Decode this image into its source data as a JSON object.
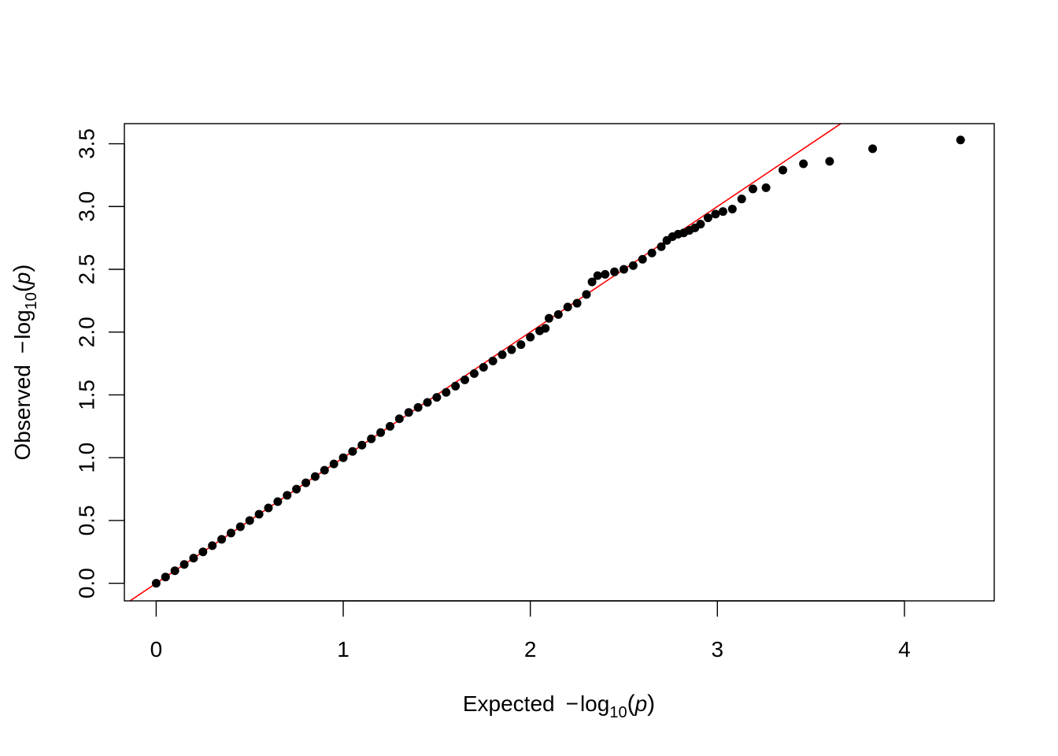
{
  "chart_data": {
    "type": "scatter",
    "title": "",
    "xlabel": {
      "prefix": "Expected",
      "minus": "−",
      "log": "log",
      "sub": "10",
      "arg": "p"
    },
    "ylabel": {
      "prefix": "Observed",
      "minus": "−",
      "log": "log",
      "sub": "10",
      "arg": "p"
    },
    "xlim": [
      -0.17,
      4.48
    ],
    "ylim": [
      -0.14,
      3.66
    ],
    "xticks": [
      0,
      1,
      2,
      3,
      4
    ],
    "xtick_labels": [
      "0",
      "1",
      "2",
      "3",
      "4"
    ],
    "yticks": [
      0.0,
      0.5,
      1.0,
      1.5,
      2.0,
      2.5,
      3.0,
      3.5
    ],
    "ytick_labels": [
      "0.0",
      "0.5",
      "1.0",
      "1.5",
      "2.0",
      "2.5",
      "3.0",
      "3.5"
    ],
    "reference_line": {
      "slope": 1,
      "intercept": 0,
      "color": "#ff0000"
    },
    "point_color": "#000000",
    "grid": false,
    "legend": "none",
    "series": [
      {
        "x": [
          0.0,
          0.05,
          0.1,
          0.15,
          0.2,
          0.25,
          0.3,
          0.35,
          0.4,
          0.45,
          0.5,
          0.55,
          0.6,
          0.65,
          0.7,
          0.75,
          0.8,
          0.85,
          0.9,
          0.95,
          1.0,
          1.05,
          1.1,
          1.15,
          1.2,
          1.25,
          1.3,
          1.35,
          1.4,
          1.45,
          1.5,
          1.55,
          1.6,
          1.65,
          1.7,
          1.75,
          1.8,
          1.85,
          1.9,
          1.95,
          2.0,
          2.05,
          2.08,
          2.1,
          2.15,
          2.2,
          2.25,
          2.3,
          2.33,
          2.36,
          2.4,
          2.45,
          2.5,
          2.55,
          2.6,
          2.65,
          2.7,
          2.73,
          2.76,
          2.79,
          2.82,
          2.85,
          2.88,
          2.91,
          2.95,
          2.99,
          3.03,
          3.08,
          3.13,
          3.19,
          3.26,
          3.35,
          3.46,
          3.6,
          3.83,
          4.3
        ],
        "y": [
          0.0,
          0.05,
          0.1,
          0.15,
          0.2,
          0.25,
          0.3,
          0.35,
          0.4,
          0.45,
          0.5,
          0.55,
          0.6,
          0.65,
          0.7,
          0.75,
          0.8,
          0.85,
          0.9,
          0.95,
          1.0,
          1.05,
          1.1,
          1.15,
          1.2,
          1.25,
          1.31,
          1.36,
          1.4,
          1.44,
          1.48,
          1.52,
          1.57,
          1.62,
          1.67,
          1.72,
          1.77,
          1.82,
          1.86,
          1.9,
          1.96,
          2.01,
          2.03,
          2.11,
          2.14,
          2.2,
          2.23,
          2.3,
          2.4,
          2.45,
          2.46,
          2.48,
          2.5,
          2.53,
          2.58,
          2.63,
          2.68,
          2.73,
          2.76,
          2.78,
          2.79,
          2.81,
          2.83,
          2.86,
          2.91,
          2.94,
          2.96,
          2.98,
          3.06,
          3.14,
          3.15,
          3.29,
          3.34,
          3.36,
          3.46,
          3.53
        ]
      }
    ]
  }
}
